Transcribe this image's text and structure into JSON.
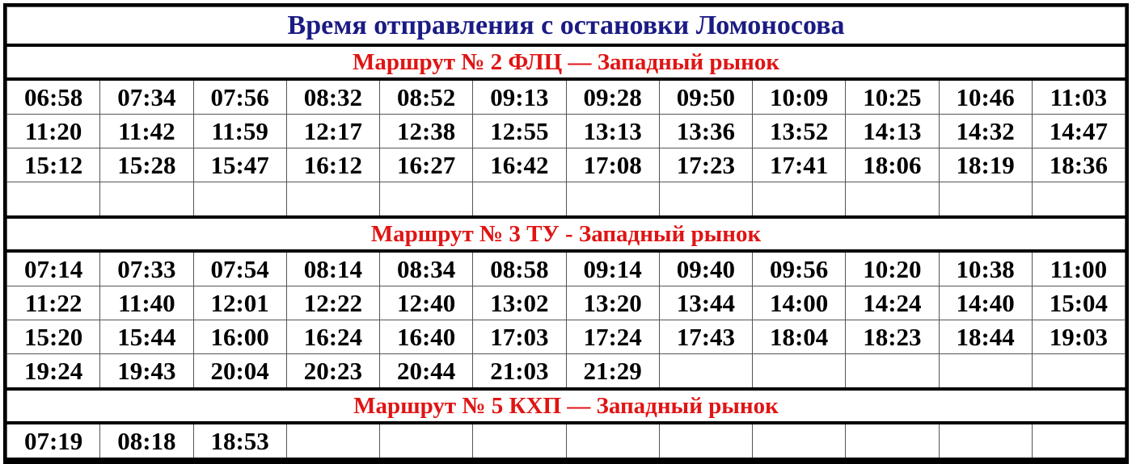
{
  "title": "Время отправления с остановки Ломоносова",
  "colors": {
    "title": "#1b1b84",
    "route_header": "#e01414",
    "text": "#000000"
  },
  "routes": [
    {
      "name": "Маршрут № 2 ФЛЦ — Западный рынок",
      "rows": [
        [
          "06:58",
          "07:34",
          "07:56",
          "08:32",
          "08:52",
          "09:13",
          "09:28",
          "09:50",
          "10:09",
          "10:25",
          "10:46",
          "11:03"
        ],
        [
          "11:20",
          "11:42",
          "11:59",
          "12:17",
          "12:38",
          "12:55",
          "13:13",
          "13:36",
          "13:52",
          "14:13",
          "14:32",
          "14:47"
        ],
        [
          "15:12",
          "15:28",
          "15:47",
          "16:12",
          "16:27",
          "16:42",
          "17:08",
          "17:23",
          "17:41",
          "18:06",
          "18:19",
          "18:36"
        ],
        [
          "",
          "",
          "",
          "",
          "",
          "",
          "",
          "",
          "",
          "",
          "",
          ""
        ]
      ]
    },
    {
      "name": "Маршрут № 3 ТУ - Западный рынок",
      "rows": [
        [
          "07:14",
          "07:33",
          "07:54",
          "08:14",
          "08:34",
          "08:58",
          "09:14",
          "09:40",
          "09:56",
          "10:20",
          "10:38",
          "11:00"
        ],
        [
          "11:22",
          "11:40",
          "12:01",
          "12:22",
          "12:40",
          "13:02",
          "13:20",
          "13:44",
          "14:00",
          "14:24",
          "14:40",
          "15:04"
        ],
        [
          "15:20",
          "15:44",
          "16:00",
          "16:24",
          "16:40",
          "17:03",
          "17:24",
          "17:43",
          "18:04",
          "18:23",
          "18:44",
          "19:03"
        ],
        [
          "19:24",
          "19:43",
          "20:04",
          "20:23",
          "20:44",
          "21:03",
          "21:29",
          "",
          "",
          "",
          "",
          ""
        ]
      ]
    },
    {
      "name": "Маршрут № 5 КХП — Западный рынок",
      "rows": [
        [
          "07:19",
          "08:18",
          "18:53",
          "",
          "",
          "",
          "",
          "",
          "",
          "",
          "",
          ""
        ]
      ]
    }
  ]
}
